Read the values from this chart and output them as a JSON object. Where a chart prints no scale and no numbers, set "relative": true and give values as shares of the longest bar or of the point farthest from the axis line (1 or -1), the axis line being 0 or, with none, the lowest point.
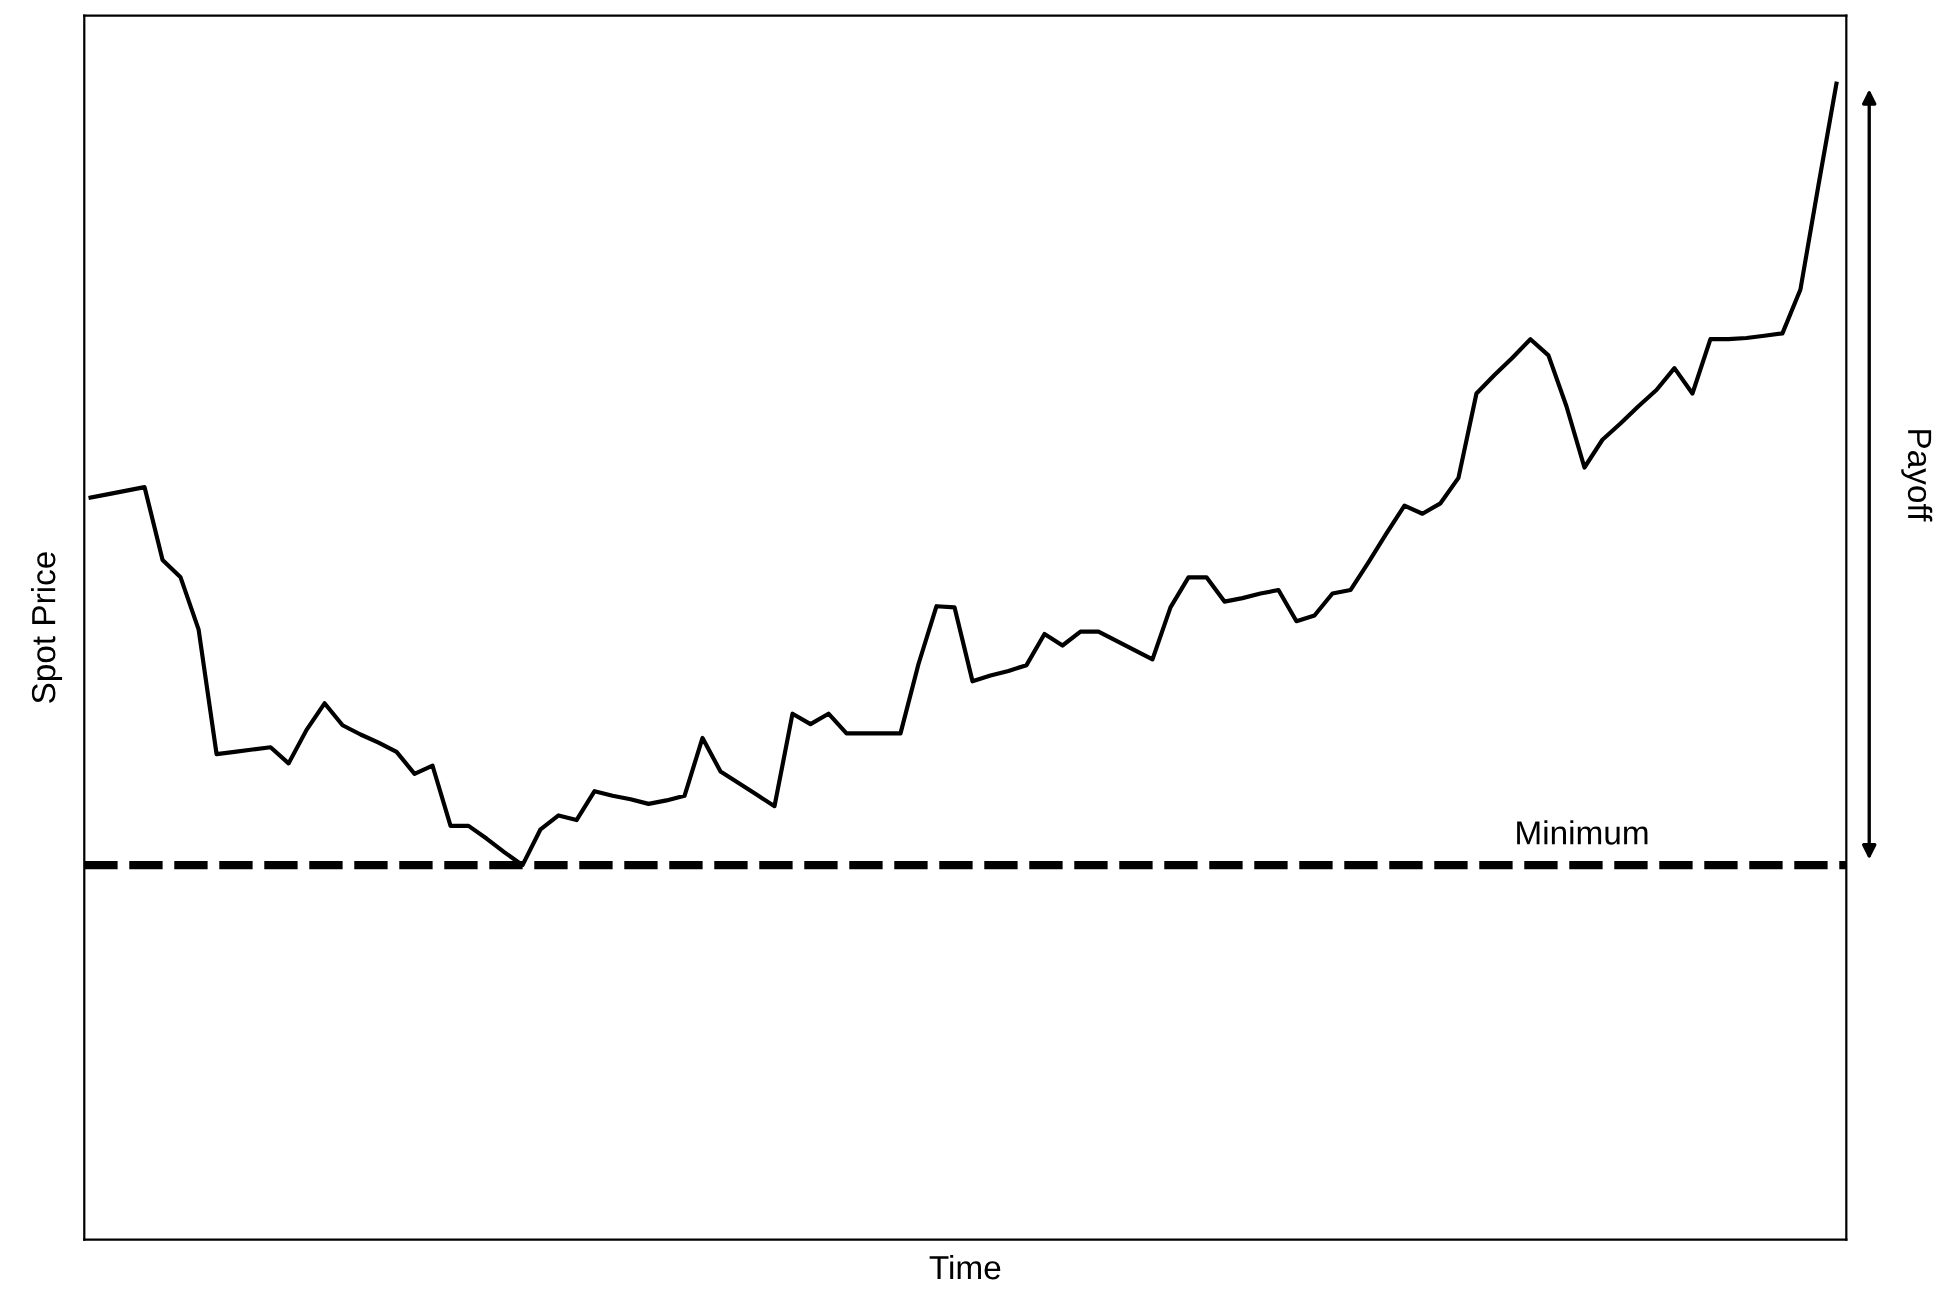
{
  "chart_data": {
    "type": "line",
    "xlabel": "Time",
    "ylabel": "Spot Price",
    "relative": true,
    "legend": false,
    "marker": "none",
    "line_style": "solid",
    "annotations": [
      "Payoff"
    ],
    "ref_lines": [
      {
        "axis": "y",
        "value": 0.324,
        "label": "Minimum",
        "line_style": "dashed",
        "color": "#000000"
      }
    ],
    "categories": [
      null,
      null,
      null,
      null,
      null,
      null,
      null,
      null,
      null,
      null,
      null,
      null,
      null,
      null,
      null,
      null,
      null,
      null,
      null,
      null,
      null,
      null,
      null,
      null,
      null,
      null,
      null,
      null,
      null,
      null,
      null,
      null,
      null,
      null,
      null,
      null,
      null,
      null,
      null,
      null,
      null,
      null,
      null,
      null,
      null,
      null,
      null,
      null,
      null,
      null,
      null,
      null,
      null,
      null,
      null,
      null,
      null,
      null,
      null,
      null,
      null,
      null,
      null,
      null,
      null,
      null,
      null,
      null,
      null,
      null,
      null,
      null,
      null,
      null,
      null,
      null,
      null,
      null,
      null,
      null,
      null,
      null,
      null,
      null,
      null,
      null,
      null,
      null,
      null,
      null,
      null,
      null,
      null,
      null,
      null,
      null,
      null,
      null
    ],
    "series": [
      {
        "color": "#000000",
        "values": [
          0.642,
          0.645,
          0.648,
          0.651,
          0.588,
          0.573,
          0.528,
          0.42,
          0.422,
          0.424,
          0.426,
          0.412,
          0.441,
          0.464,
          0.445,
          0.437,
          0.43,
          0.422,
          0.403,
          0.41,
          0.358,
          0.358,
          0.347,
          0.335,
          0.324,
          0.355,
          0.367,
          0.363,
          0.388,
          0.384,
          0.381,
          0.377,
          0.38,
          0.384,
          0.434,
          0.405,
          0.395,
          0.385,
          0.375,
          0.455,
          0.446,
          0.455,
          0.438,
          0.438,
          0.438,
          0.438,
          0.498,
          0.548,
          0.547,
          0.483,
          0.488,
          0.492,
          0.497,
          0.524,
          0.514,
          0.526,
          0.526,
          0.518,
          0.51,
          0.502,
          0.547,
          0.573,
          0.573,
          0.552,
          0.555,
          0.559,
          0.562,
          0.535,
          0.54,
          0.559,
          0.562,
          0.586,
          0.611,
          0.635,
          0.628,
          0.637,
          0.659,
          0.732,
          0.748,
          0.763,
          0.779,
          0.765,
          0.721,
          0.668,
          0.692,
          0.706,
          0.721,
          0.735,
          0.754,
          0.732,
          0.779,
          0.779,
          0.78,
          0.782,
          0.784,
          0.822,
          0.912,
          1.0
        ]
      }
    ]
  }
}
